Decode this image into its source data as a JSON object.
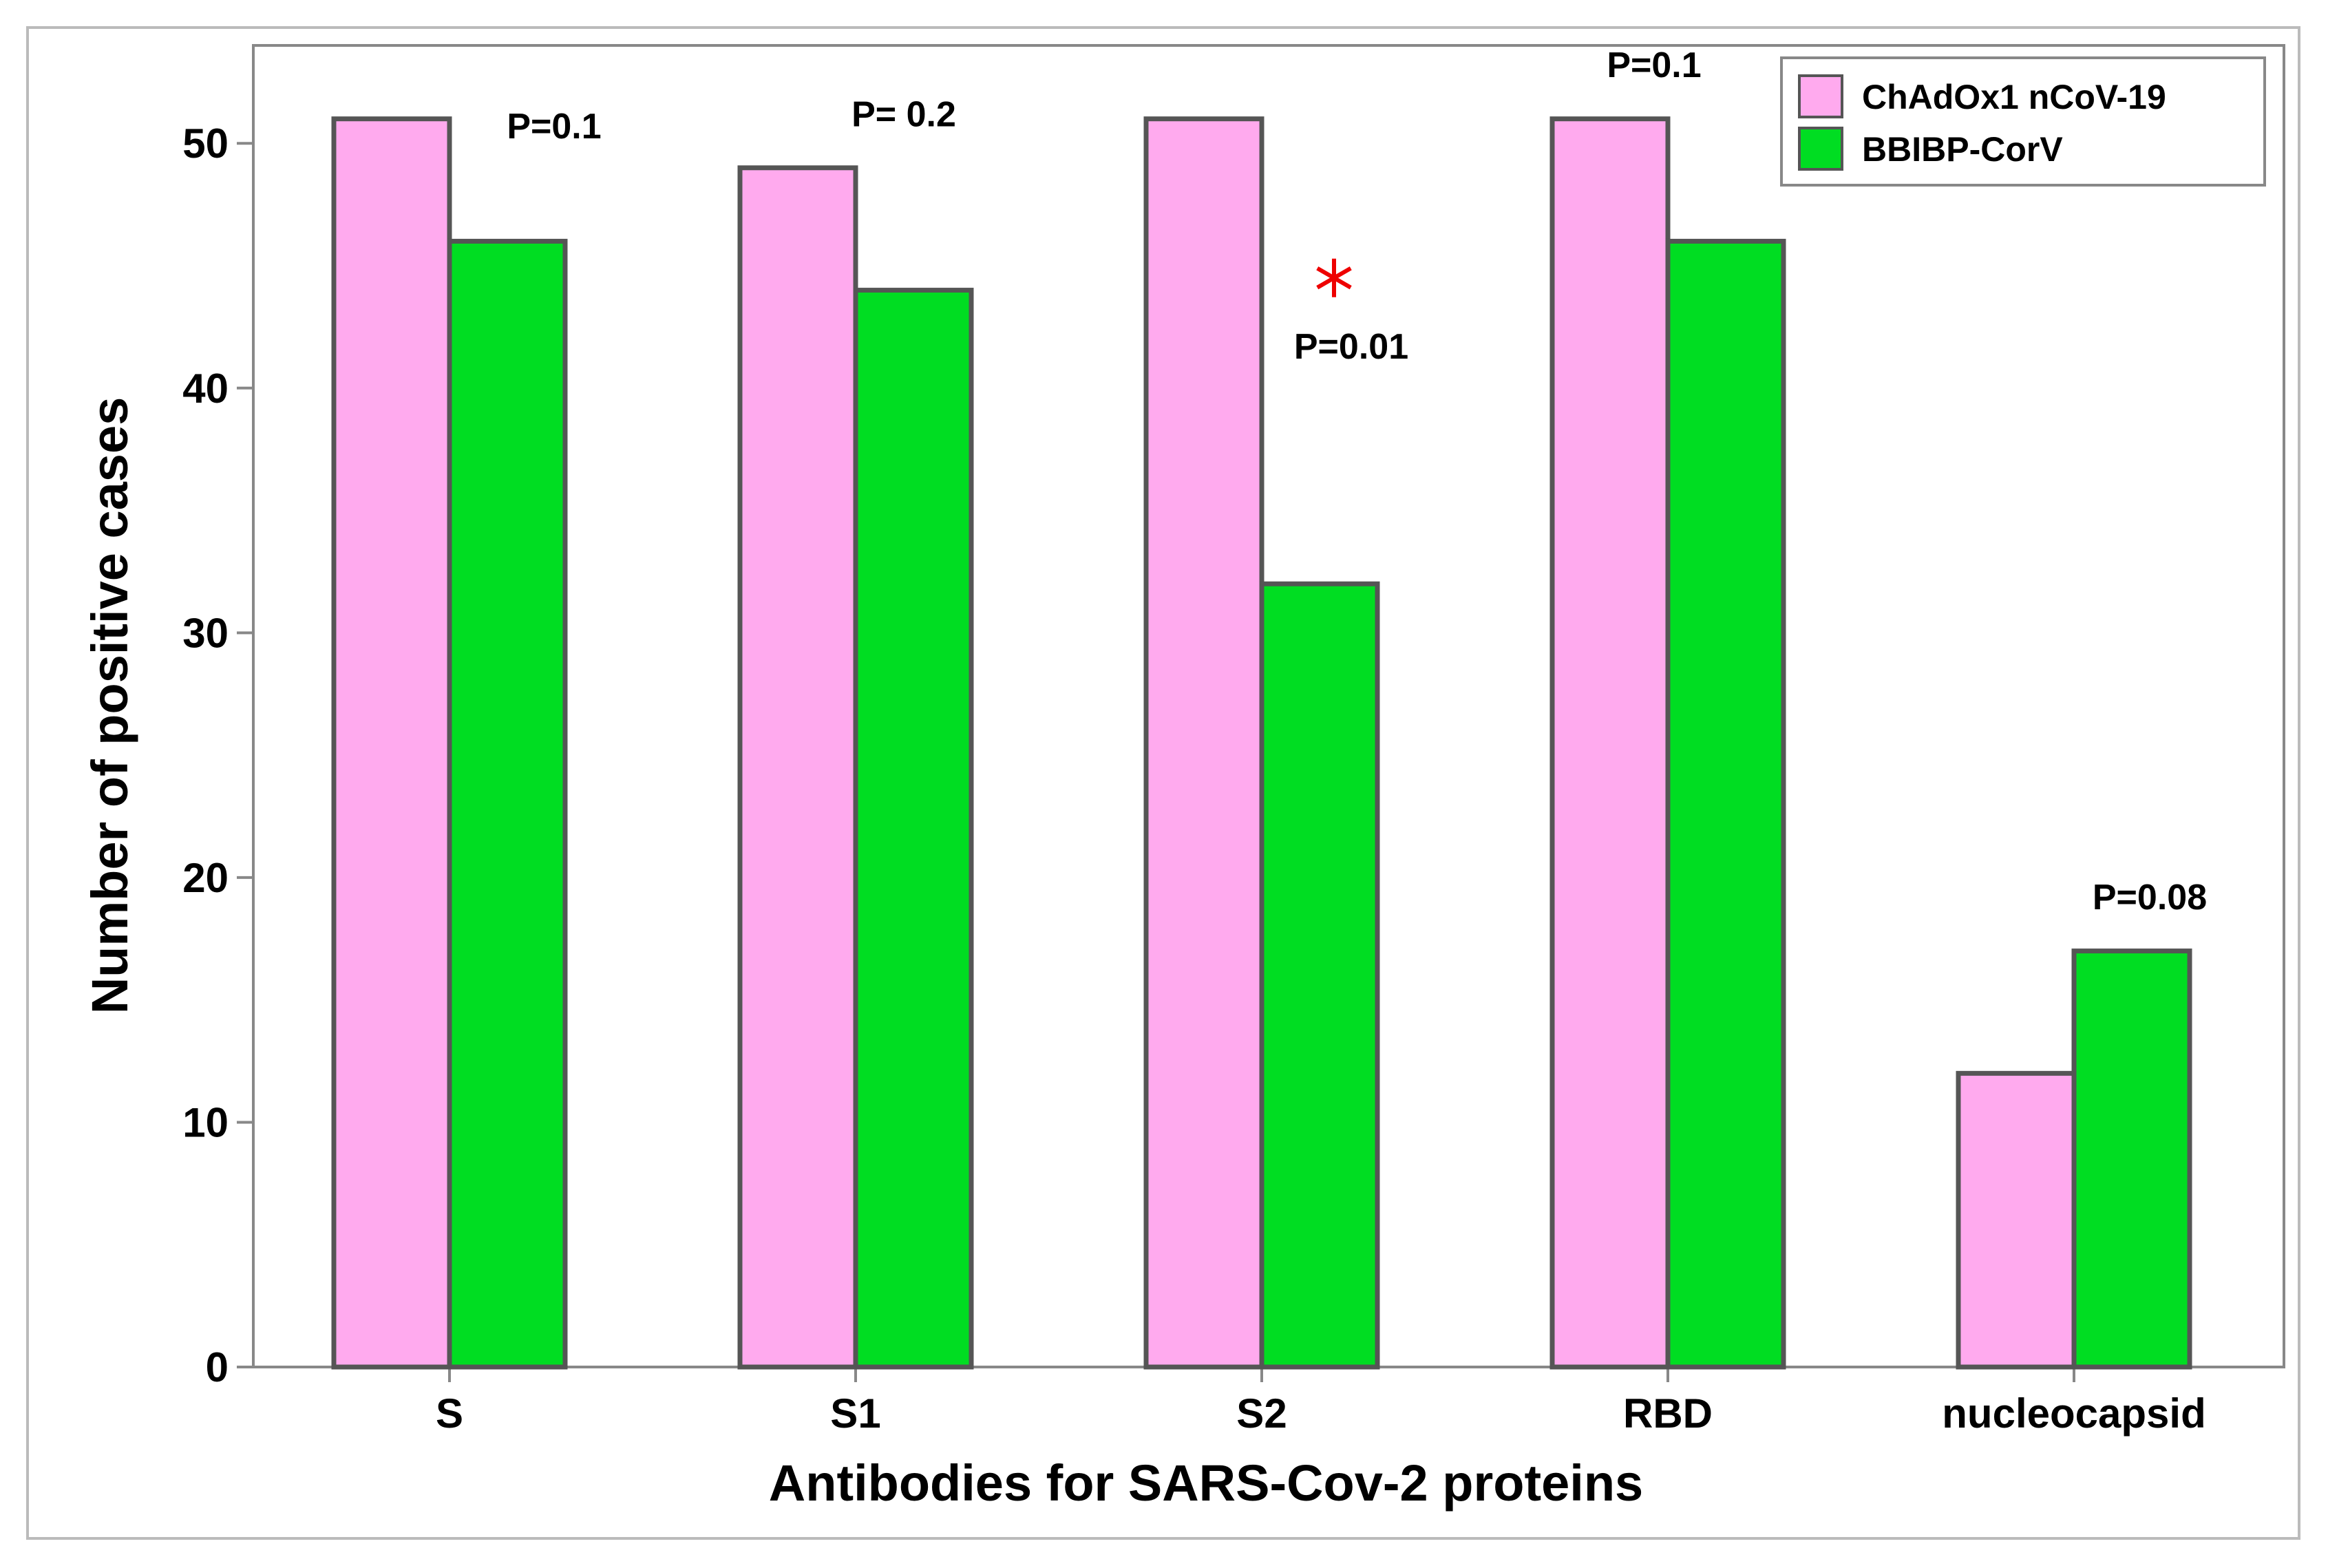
{
  "chart_data": {
    "type": "bar",
    "categories": [
      "S",
      "S1",
      "S2",
      "RBD",
      "nucleocapsid"
    ],
    "series": [
      {
        "name": "ChAdOx1 nCoV-19",
        "values": [
          51,
          49,
          51,
          51,
          12
        ],
        "color": "#ffaaee"
      },
      {
        "name": "BBIBP-CorV",
        "values": [
          46,
          44,
          32,
          46,
          17
        ],
        "color": "#00dd22"
      }
    ],
    "title": "",
    "xlabel": "Antibodies for SARS-Cov-2 proteins",
    "ylabel": "Number of positive cases",
    "ylim": [
      0,
      54
    ],
    "yticks": [
      0,
      10,
      20,
      30,
      40,
      50
    ],
    "grid": false,
    "legend_position": "top-right",
    "annotations": [
      {
        "category": "S",
        "text": "P=0.1",
        "y": 50.2
      },
      {
        "category": "S1",
        "text": "P= 0.2",
        "y": 50.7
      },
      {
        "category": "S2",
        "text": "P=0.01",
        "y": 41.2,
        "marker": "asterisk",
        "marker_color": "#ee0000",
        "marker_y": 44.5
      },
      {
        "category": "RBD",
        "text": "P=0.1",
        "y": 52.7
      },
      {
        "category": "nucleocapsid",
        "text": "P=0.08",
        "y": 18.7
      }
    ]
  }
}
